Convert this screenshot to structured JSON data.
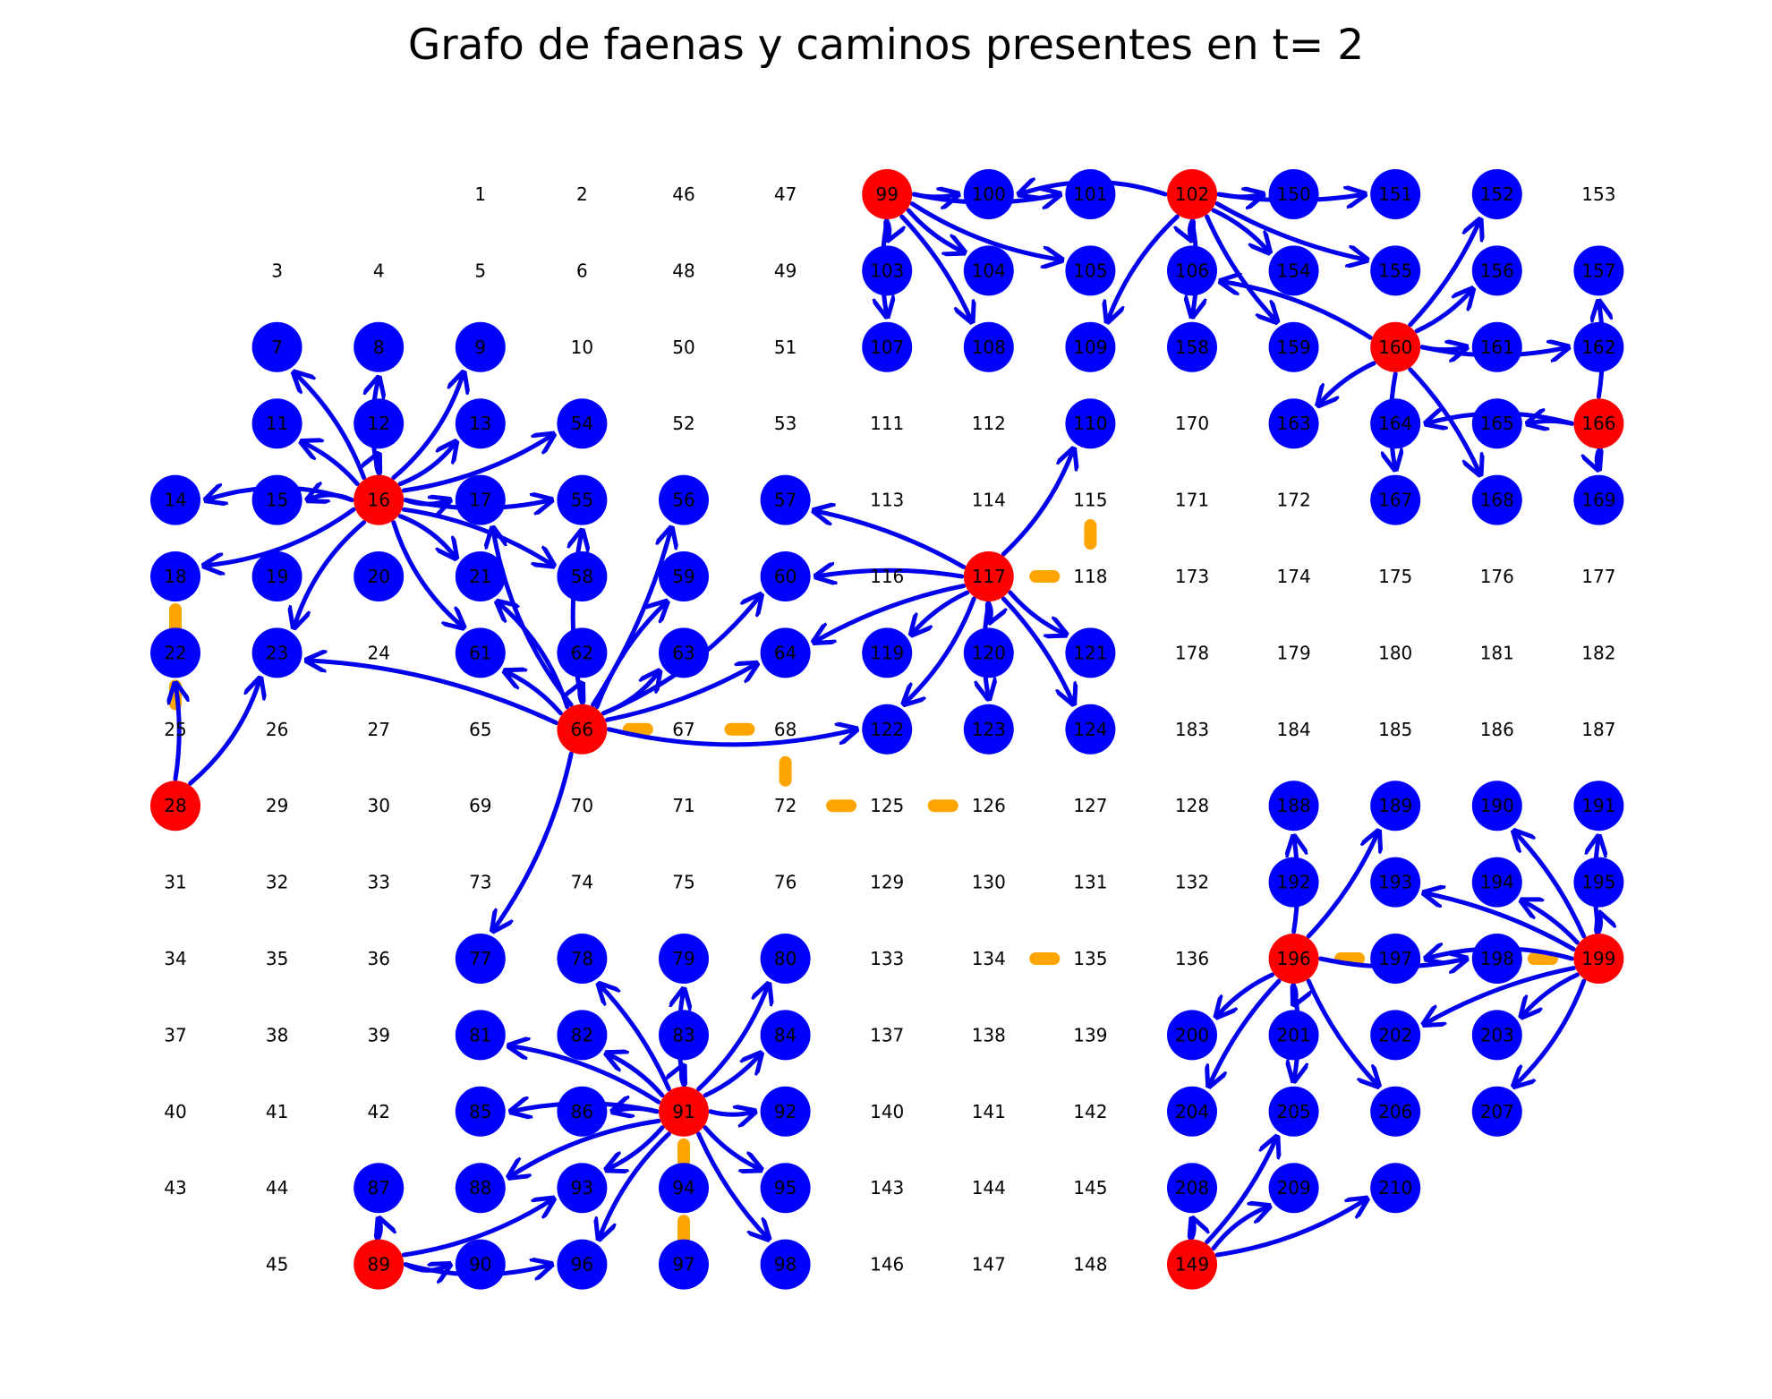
{
  "title": "Grafo de faenas y caminos presentes en t= 2",
  "colors": {
    "faena": "#ff0000",
    "destino": "#0000ff",
    "camino": "#0000ee",
    "camino_nuevo": "#ffa500",
    "label": "#000000"
  },
  "grid": {
    "rows": [
      [
        "",
        "",
        "",
        "1",
        "2",
        "46",
        "47",
        "99",
        "100",
        "101",
        "102",
        "150",
        "151",
        "152",
        "153"
      ],
      [
        "",
        "3",
        "4",
        "5",
        "6",
        "48",
        "49",
        "103",
        "104",
        "105",
        "106",
        "154",
        "155",
        "156",
        "157"
      ],
      [
        "",
        "7",
        "8",
        "9",
        "10",
        "50",
        "51",
        "107",
        "108",
        "109",
        "158",
        "159",
        "160",
        "161",
        "162"
      ],
      [
        "",
        "11",
        "12",
        "13",
        "54",
        "52",
        "53",
        "111",
        "112",
        "110",
        "170",
        "163",
        "164",
        "165",
        "166"
      ],
      [
        "14",
        "15",
        "16",
        "17",
        "55",
        "56",
        "57",
        "113",
        "114",
        "115",
        "171",
        "172",
        "167",
        "168",
        "169"
      ],
      [
        "18",
        "19",
        "20",
        "21",
        "58",
        "59",
        "60",
        "116",
        "117",
        "118",
        "173",
        "174",
        "175",
        "176",
        "177"
      ],
      [
        "22",
        "23",
        "24",
        "61",
        "62",
        "63",
        "64",
        "119",
        "120",
        "121",
        "178",
        "179",
        "180",
        "181",
        "182"
      ],
      [
        "25",
        "26",
        "27",
        "65",
        "66",
        "67",
        "68",
        "122",
        "123",
        "124",
        "183",
        "184",
        "185",
        "186",
        "187"
      ],
      [
        "28",
        "29",
        "30",
        "69",
        "70",
        "71",
        "72",
        "125",
        "126",
        "127",
        "128",
        "188",
        "189",
        "190",
        "191"
      ],
      [
        "31",
        "32",
        "33",
        "73",
        "74",
        "75",
        "76",
        "129",
        "130",
        "131",
        "132",
        "192",
        "193",
        "194",
        "195"
      ],
      [
        "34",
        "35",
        "36",
        "77",
        "78",
        "79",
        "80",
        "133",
        "134",
        "135",
        "136",
        "196",
        "197",
        "198",
        "199"
      ],
      [
        "37",
        "38",
        "39",
        "81",
        "82",
        "83",
        "84",
        "137",
        "138",
        "139",
        "200",
        "201",
        "202",
        "203",
        ""
      ],
      [
        "40",
        "41",
        "42",
        "85",
        "86",
        "91",
        "92",
        "140",
        "141",
        "142",
        "204",
        "205",
        "206",
        "207",
        ""
      ],
      [
        "43",
        "44",
        "87",
        "88",
        "93",
        "94",
        "95",
        "143",
        "144",
        "145",
        "208",
        "209",
        "210",
        "",
        ""
      ],
      [
        "",
        "45",
        "89",
        "90",
        "96",
        "97",
        "98",
        "146",
        "147",
        "148",
        "149",
        "",
        "",
        "",
        ""
      ]
    ]
  },
  "faenas": [
    "16",
    "28",
    "66",
    "89",
    "91",
    "99",
    "102",
    "117",
    "149",
    "160",
    "166",
    "196",
    "199"
  ],
  "destinos": [
    "7",
    "8",
    "9",
    "11",
    "12",
    "13",
    "14",
    "15",
    "17",
    "18",
    "19",
    "20",
    "21",
    "22",
    "23",
    "54",
    "55",
    "56",
    "57",
    "58",
    "59",
    "60",
    "61",
    "62",
    "63",
    "64",
    "77",
    "78",
    "79",
    "80",
    "81",
    "82",
    "83",
    "84",
    "85",
    "86",
    "87",
    "88",
    "90",
    "92",
    "93",
    "94",
    "95",
    "96",
    "97",
    "98",
    "100",
    "101",
    "103",
    "104",
    "105",
    "106",
    "107",
    "108",
    "109",
    "110",
    "119",
    "120",
    "121",
    "122",
    "123",
    "124",
    "150",
    "151",
    "152",
    "154",
    "155",
    "156",
    "157",
    "158",
    "159",
    "161",
    "162",
    "163",
    "164",
    "165",
    "167",
    "168",
    "169",
    "188",
    "189",
    "190",
    "191",
    "192",
    "193",
    "194",
    "195",
    "197",
    "198",
    "200",
    "201",
    "202",
    "203",
    "204",
    "205",
    "206",
    "207",
    "208",
    "209",
    "210"
  ],
  "edges": [
    {
      "from": "16",
      "to": "7",
      "bend": 0.08
    },
    {
      "from": "16",
      "to": "8",
      "bend": -0.08
    },
    {
      "from": "16",
      "to": "9",
      "bend": 0.1
    },
    {
      "from": "16",
      "to": "11",
      "bend": 0.06
    },
    {
      "from": "16",
      "to": "12",
      "bend": -0.06
    },
    {
      "from": "16",
      "to": "13",
      "bend": 0.08
    },
    {
      "from": "16",
      "to": "14",
      "bend": 0.12
    },
    {
      "from": "16",
      "to": "15",
      "bend": 0.1
    },
    {
      "from": "16",
      "to": "17",
      "bend": 0.08
    },
    {
      "from": "16",
      "to": "18",
      "bend": -0.1
    },
    {
      "from": "16",
      "to": "21",
      "bend": -0.08
    },
    {
      "from": "16",
      "to": "23",
      "bend": 0.1
    },
    {
      "from": "16",
      "to": "54",
      "bend": 0.08
    },
    {
      "from": "16",
      "to": "55",
      "bend": 0.08
    },
    {
      "from": "16",
      "to": "58",
      "bend": -0.08
    },
    {
      "from": "16",
      "to": "61",
      "bend": 0.1
    },
    {
      "from": "28",
      "to": "22",
      "bend": 0.05
    },
    {
      "from": "28",
      "to": "23",
      "bend": 0.1
    },
    {
      "from": "66",
      "to": "23",
      "bend": 0.08
    },
    {
      "from": "66",
      "to": "17",
      "bend": -0.1
    },
    {
      "from": "66",
      "to": "21",
      "bend": 0.1
    },
    {
      "from": "66",
      "to": "55",
      "bend": -0.08
    },
    {
      "from": "66",
      "to": "56",
      "bend": 0.06
    },
    {
      "from": "66",
      "to": "59",
      "bend": -0.08
    },
    {
      "from": "66",
      "to": "61",
      "bend": 0.06
    },
    {
      "from": "66",
      "to": "62",
      "bend": -0.06
    },
    {
      "from": "66",
      "to": "63",
      "bend": 0.08
    },
    {
      "from": "66",
      "to": "64",
      "bend": 0.06
    },
    {
      "from": "66",
      "to": "60",
      "bend": 0.1
    },
    {
      "from": "66",
      "to": "122",
      "bend": 0.1
    },
    {
      "from": "66",
      "to": "77",
      "bend": -0.08
    },
    {
      "from": "91",
      "to": "78",
      "bend": 0.06
    },
    {
      "from": "91",
      "to": "79",
      "bend": -0.06
    },
    {
      "from": "91",
      "to": "80",
      "bend": 0.08
    },
    {
      "from": "91",
      "to": "81",
      "bend": 0.08
    },
    {
      "from": "91",
      "to": "82",
      "bend": 0.06
    },
    {
      "from": "91",
      "to": "83",
      "bend": -0.06
    },
    {
      "from": "91",
      "to": "84",
      "bend": 0.06
    },
    {
      "from": "91",
      "to": "85",
      "bend": 0.08
    },
    {
      "from": "91",
      "to": "86",
      "bend": 0.06
    },
    {
      "from": "91",
      "to": "88",
      "bend": 0.08
    },
    {
      "from": "91",
      "to": "92",
      "bend": 0.06
    },
    {
      "from": "91",
      "to": "93",
      "bend": -0.06
    },
    {
      "from": "91",
      "to": "95",
      "bend": 0.06
    },
    {
      "from": "91",
      "to": "96",
      "bend": 0.08
    },
    {
      "from": "91",
      "to": "98",
      "bend": 0.06
    },
    {
      "from": "89",
      "to": "87",
      "bend": 0.05
    },
    {
      "from": "89",
      "to": "90",
      "bend": 0.12
    },
    {
      "from": "89",
      "to": "93",
      "bend": 0.08
    },
    {
      "from": "89",
      "to": "96",
      "bend": 0.1
    },
    {
      "from": "117",
      "to": "57",
      "bend": 0.06
    },
    {
      "from": "117",
      "to": "60",
      "bend": 0.06
    },
    {
      "from": "117",
      "to": "64",
      "bend": 0.06
    },
    {
      "from": "117",
      "to": "110",
      "bend": 0.08
    },
    {
      "from": "117",
      "to": "119",
      "bend": 0.06
    },
    {
      "from": "117",
      "to": "120",
      "bend": -0.06
    },
    {
      "from": "117",
      "to": "121",
      "bend": 0.06
    },
    {
      "from": "117",
      "to": "122",
      "bend": -0.08
    },
    {
      "from": "117",
      "to": "123",
      "bend": 0.06
    },
    {
      "from": "117",
      "to": "124",
      "bend": -0.06
    },
    {
      "from": "99",
      "to": "100",
      "bend": 0.05
    },
    {
      "from": "99",
      "to": "101",
      "bend": 0.08
    },
    {
      "from": "99",
      "to": "103",
      "bend": -0.06
    },
    {
      "from": "99",
      "to": "104",
      "bend": 0.06
    },
    {
      "from": "99",
      "to": "105",
      "bend": 0.08
    },
    {
      "from": "99",
      "to": "107",
      "bend": 0.06
    },
    {
      "from": "99",
      "to": "108",
      "bend": -0.06
    },
    {
      "from": "102",
      "to": "100",
      "bend": 0.12
    },
    {
      "from": "102",
      "to": "106",
      "bend": 0.06
    },
    {
      "from": "102",
      "to": "109",
      "bend": 0.08
    },
    {
      "from": "102",
      "to": "150",
      "bend": 0.05
    },
    {
      "from": "102",
      "to": "151",
      "bend": 0.06
    },
    {
      "from": "102",
      "to": "154",
      "bend": -0.06
    },
    {
      "from": "102",
      "to": "155",
      "bend": 0.06
    },
    {
      "from": "102",
      "to": "158",
      "bend": -0.06
    },
    {
      "from": "102",
      "to": "159",
      "bend": 0.06
    },
    {
      "from": "160",
      "to": "106",
      "bend": 0.08
    },
    {
      "from": "160",
      "to": "152",
      "bend": 0.06
    },
    {
      "from": "160",
      "to": "156",
      "bend": 0.06
    },
    {
      "from": "160",
      "to": "161",
      "bend": 0.05
    },
    {
      "from": "160",
      "to": "162",
      "bend": 0.08
    },
    {
      "from": "160",
      "to": "163",
      "bend": 0.06
    },
    {
      "from": "160",
      "to": "167",
      "bend": 0.06
    },
    {
      "from": "160",
      "to": "168",
      "bend": -0.06
    },
    {
      "from": "166",
      "to": "157",
      "bend": 0.05
    },
    {
      "from": "166",
      "to": "164",
      "bend": 0.1
    },
    {
      "from": "166",
      "to": "165",
      "bend": 0.05
    },
    {
      "from": "166",
      "to": "169",
      "bend": 0.05
    },
    {
      "from": "196",
      "to": "188",
      "bend": 0.05
    },
    {
      "from": "196",
      "to": "189",
      "bend": 0.06
    },
    {
      "from": "196",
      "to": "198",
      "bend": 0.08
    },
    {
      "from": "196",
      "to": "200",
      "bend": 0.06
    },
    {
      "from": "196",
      "to": "201",
      "bend": -0.06
    },
    {
      "from": "196",
      "to": "204",
      "bend": 0.06
    },
    {
      "from": "196",
      "to": "205",
      "bend": -0.06
    },
    {
      "from": "196",
      "to": "206",
      "bend": 0.06
    },
    {
      "from": "199",
      "to": "190",
      "bend": 0.06
    },
    {
      "from": "199",
      "to": "191",
      "bend": -0.05
    },
    {
      "from": "199",
      "to": "193",
      "bend": 0.06
    },
    {
      "from": "199",
      "to": "194",
      "bend": 0.05
    },
    {
      "from": "199",
      "to": "195",
      "bend": 0.05
    },
    {
      "from": "199",
      "to": "197",
      "bend": 0.1
    },
    {
      "from": "199",
      "to": "202",
      "bend": 0.06
    },
    {
      "from": "199",
      "to": "203",
      "bend": 0.06
    },
    {
      "from": "199",
      "to": "207",
      "bend": -0.08
    },
    {
      "from": "149",
      "to": "208",
      "bend": 0.05
    },
    {
      "from": "149",
      "to": "209",
      "bend": -0.08
    },
    {
      "from": "149",
      "to": "210",
      "bend": 0.08
    },
    {
      "from": "149",
      "to": "205",
      "bend": 0.06
    }
  ],
  "caminos_nuevos": [
    {
      "from": "18",
      "to": "22"
    },
    {
      "from": "22",
      "to": "25"
    },
    {
      "from": "66",
      "to": "67"
    },
    {
      "from": "67",
      "to": "68"
    },
    {
      "from": "68",
      "to": "72"
    },
    {
      "from": "72",
      "to": "125"
    },
    {
      "from": "125",
      "to": "126"
    },
    {
      "from": "117",
      "to": "118"
    },
    {
      "from": "118",
      "to": "115"
    },
    {
      "from": "134",
      "to": "135"
    },
    {
      "from": "196",
      "to": "197"
    },
    {
      "from": "199",
      "to": "198"
    },
    {
      "from": "91",
      "to": "94"
    },
    {
      "from": "94",
      "to": "97"
    }
  ]
}
